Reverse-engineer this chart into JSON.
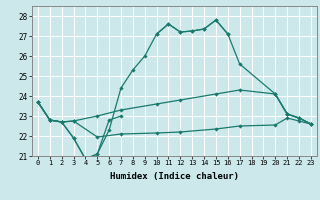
{
  "xlabel": "Humidex (Indice chaleur)",
  "xlim": [
    -0.5,
    23.5
  ],
  "ylim": [
    21,
    28.5
  ],
  "yticks": [
    21,
    22,
    23,
    24,
    25,
    26,
    27,
    28
  ],
  "xticks": [
    0,
    1,
    2,
    3,
    4,
    5,
    6,
    7,
    8,
    9,
    10,
    11,
    12,
    13,
    14,
    15,
    16,
    17,
    18,
    19,
    20,
    21,
    22,
    23
  ],
  "bg_color": "#cce8ea",
  "line_color": "#1a7a6e",
  "grid_color": "#ffffff",
  "line1_segments": [
    {
      "x": [
        0,
        1,
        2,
        3,
        4,
        5,
        6,
        7
      ],
      "y": [
        23.7,
        22.8,
        22.7,
        21.9,
        20.85,
        21.1,
        22.8,
        23.0
      ]
    },
    {
      "x": [
        10,
        11,
        12,
        13,
        14,
        15,
        16
      ],
      "y": [
        27.1,
        27.6,
        27.2,
        27.25,
        27.35,
        27.8,
        27.1
      ]
    },
    {
      "x": [
        20,
        21,
        22,
        23
      ],
      "y": [
        24.1,
        23.1,
        22.9,
        22.6
      ]
    }
  ],
  "line2_x": [
    0,
    1,
    2,
    3,
    4,
    5,
    6,
    7,
    8,
    9,
    10,
    11,
    12,
    13,
    14,
    15,
    16,
    17,
    20,
    21,
    22,
    23
  ],
  "line2_y": [
    23.7,
    22.8,
    22.7,
    21.9,
    20.85,
    21.1,
    22.3,
    24.4,
    25.3,
    26.0,
    27.1,
    27.6,
    27.2,
    27.25,
    27.35,
    27.8,
    27.1,
    25.6,
    24.1,
    23.1,
    22.9,
    22.6
  ],
  "line3_x": [
    0,
    1,
    2,
    3,
    5,
    7,
    10,
    12,
    15,
    17,
    20,
    21,
    22,
    23
  ],
  "line3_y": [
    23.7,
    22.8,
    22.7,
    22.75,
    23.0,
    23.3,
    23.6,
    23.8,
    24.1,
    24.3,
    24.1,
    23.1,
    22.9,
    22.6
  ],
  "line4_x": [
    0,
    1,
    2,
    3,
    5,
    7,
    10,
    12,
    15,
    17,
    20,
    21,
    22,
    23
  ],
  "line4_y": [
    23.7,
    22.8,
    22.7,
    22.75,
    21.95,
    22.1,
    22.15,
    22.2,
    22.35,
    22.5,
    22.55,
    22.9,
    22.75,
    22.6
  ]
}
